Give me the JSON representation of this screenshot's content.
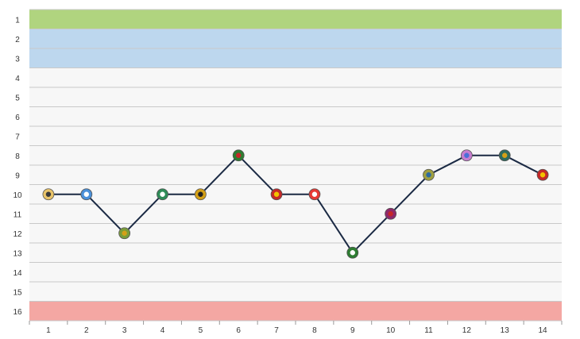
{
  "colors": {
    "champion": "#b0d47f",
    "europe": "#bdd7ee",
    "relegation": "#f4a7a3",
    "row_fill": "#f7f7f7",
    "grid": "#c9c9c9",
    "line": "#1b2a44"
  },
  "chart_data": {
    "type": "line",
    "title": "",
    "xlabel": "",
    "ylabel": "",
    "x": [
      1,
      2,
      3,
      4,
      5,
      6,
      7,
      8,
      9,
      10,
      11,
      12,
      13,
      14
    ],
    "x_tick_labels": [
      "1",
      "2",
      "3",
      "4",
      "5",
      "6",
      "7",
      "8",
      "9",
      "10",
      "11",
      "12",
      "13",
      "14"
    ],
    "y_tick_labels": [
      "1",
      "2",
      "3",
      "4",
      "5",
      "6",
      "7",
      "8",
      "9",
      "10",
      "11",
      "12",
      "13",
      "14",
      "15",
      "16"
    ],
    "ylim": [
      1,
      16
    ],
    "y_inverted": true,
    "grid": true,
    "series": [
      {
        "values": [
          10,
          10,
          12,
          10,
          10,
          8,
          10,
          10,
          13,
          11,
          9,
          8,
          8,
          9
        ],
        "markers": [
          "club-crest-icon",
          "club-crest-icon",
          "club-crest-icon",
          "club-crest-icon",
          "club-crest-icon",
          "club-crest-icon",
          "club-crest-icon",
          "club-crest-icon",
          "club-crest-icon",
          "club-crest-icon",
          "club-crest-icon",
          "club-crest-icon",
          "club-crest-icon",
          "club-crest-icon"
        ]
      }
    ],
    "marker_colors": [
      [
        "#e9c46a",
        "#3a3a3a"
      ],
      [
        "#4a90d9",
        "#ffffff"
      ],
      [
        "#7a9c3a",
        "#d4a017"
      ],
      [
        "#2e8b57",
        "#ffffff"
      ],
      [
        "#d4a017",
        "#222222"
      ],
      [
        "#2e7d32",
        "#c62828"
      ],
      [
        "#c62828",
        "#f2c200"
      ],
      [
        "#e53935",
        "#ffffff"
      ],
      [
        "#2e7d32",
        "#ffffff"
      ],
      [
        "#8e2a6b",
        "#c62828"
      ],
      [
        "#a0a040",
        "#2e6b9e"
      ],
      [
        "#c77dcf",
        "#4a6fd8"
      ],
      [
        "#2e6b5e",
        "#d4a017"
      ],
      [
        "#c62828",
        "#f2c200"
      ]
    ],
    "bands": [
      {
        "from": 1,
        "to": 1,
        "kind": "champion"
      },
      {
        "from": 2,
        "to": 3,
        "kind": "europe"
      },
      {
        "from": 16,
        "to": 16,
        "kind": "relegation"
      }
    ]
  }
}
